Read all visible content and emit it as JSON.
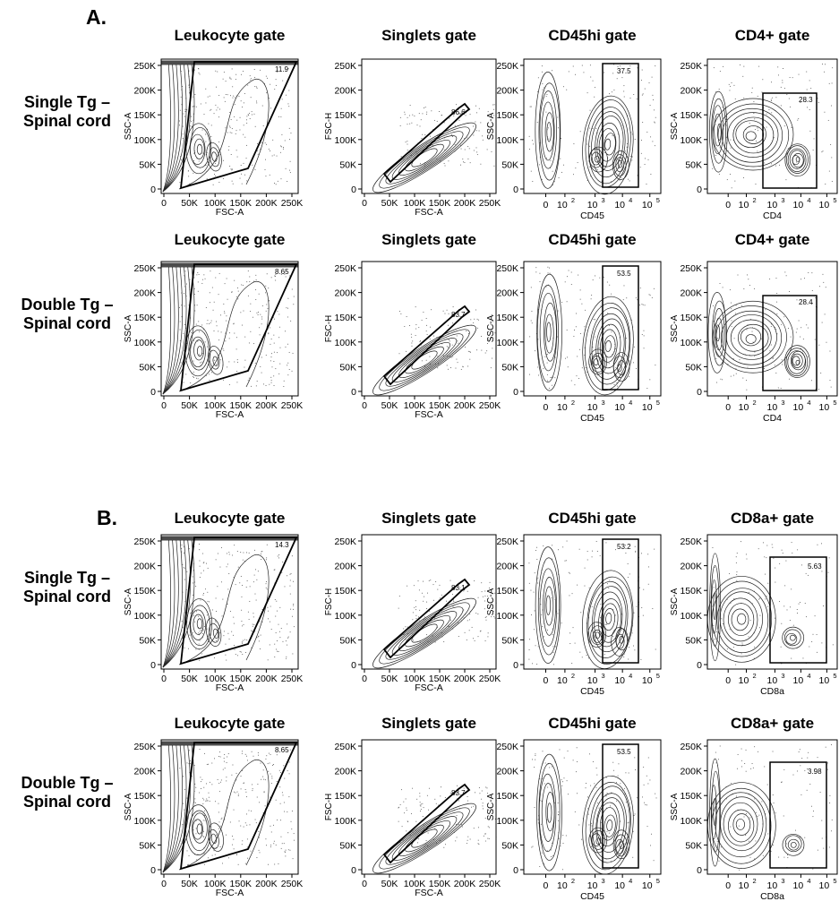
{
  "figure": {
    "sections": [
      {
        "label": "A.",
        "rows": [
          {
            "row_label": [
              "Single Tg –",
              "Spinal cord"
            ],
            "panels": [
              {
                "title": "Leukocyte gate",
                "kind": "fsc_ssc",
                "gate_value": "11.9",
                "xlabel": "FSC-A",
                "ylabel": "SSC-A"
              },
              {
                "title": "Singlets gate",
                "kind": "singlets",
                "gate_value": "86.6",
                "xlabel": "FSC-A",
                "ylabel": "FSC-H"
              },
              {
                "title": "CD45hi gate",
                "kind": "cd45",
                "gate_value": "37.5",
                "xlabel": "CD45",
                "ylabel": "SSC-A"
              },
              {
                "title": "CD4+ gate",
                "kind": "cd4",
                "gate_value": "28.3",
                "xlabel": "CD4",
                "ylabel": "SSC-A"
              }
            ]
          },
          {
            "row_label": [
              "Double Tg –",
              "Spinal cord"
            ],
            "panels": [
              {
                "title": "Leukocyte gate",
                "kind": "fsc_ssc",
                "gate_value": "8.65",
                "xlabel": "FSC-A",
                "ylabel": "SSC-A"
              },
              {
                "title": "Singlets gate",
                "kind": "singlets",
                "gate_value": "83.7",
                "xlabel": "FSC-A",
                "ylabel": "FSC-H"
              },
              {
                "title": "CD45hi gate",
                "kind": "cd45",
                "gate_value": "53.5",
                "xlabel": "CD45",
                "ylabel": "SSC-A"
              },
              {
                "title": "CD4+ gate",
                "kind": "cd4",
                "gate_value": "28.4",
                "xlabel": "CD4",
                "ylabel": "SSC-A"
              }
            ]
          }
        ]
      },
      {
        "label": "B.",
        "rows": [
          {
            "row_label": [
              "Single Tg –",
              "Spinal cord"
            ],
            "panels": [
              {
                "title": "Leukocyte gate",
                "kind": "fsc_ssc",
                "gate_value": "14.3",
                "xlabel": "FSC-A",
                "ylabel": "SSC-A"
              },
              {
                "title": "Singlets gate",
                "kind": "singlets",
                "gate_value": "83.1",
                "xlabel": "FSC-A",
                "ylabel": "FSC-H"
              },
              {
                "title": "CD45hi gate",
                "kind": "cd45",
                "gate_value": "53.2",
                "xlabel": "CD45",
                "ylabel": "SSC-A"
              },
              {
                "title": "CD8a+ gate",
                "kind": "cd8",
                "gate_value": "5.63",
                "xlabel": "CD8a",
                "ylabel": "SSC-A"
              }
            ]
          },
          {
            "row_label": [
              "Double Tg –",
              "Spinal cord"
            ],
            "panels": [
              {
                "title": "Leukocyte gate",
                "kind": "fsc_ssc",
                "gate_value": "8.65",
                "xlabel": "FSC-A",
                "ylabel": "SSC-A"
              },
              {
                "title": "Singlets gate",
                "kind": "singlets",
                "gate_value": "83.7",
                "xlabel": "FSC-A",
                "ylabel": "FSC-H"
              },
              {
                "title": "CD45hi gate",
                "kind": "cd45",
                "gate_value": "53.5",
                "xlabel": "CD45",
                "ylabel": "SSC-A"
              },
              {
                "title": "CD8a+ gate",
                "kind": "cd8",
                "gate_value": "3.98",
                "xlabel": "CD8a",
                "ylabel": "SSC-A"
              }
            ]
          }
        ]
      }
    ],
    "axes": {
      "linear_y_ticks": [
        "0",
        "50K",
        "100K",
        "150K",
        "200K",
        "250K"
      ],
      "leukocyte_x_ticks": [
        "0",
        "50K",
        "100K",
        "150K",
        "200K",
        "250K"
      ],
      "singlets_x_ticks": [
        "0",
        "50K",
        "100K",
        "150K",
        "200K",
        "250K"
      ],
      "log_x_ticks": [
        "0",
        "10",
        "10",
        "10",
        "10"
      ],
      "log_x_exponents": [
        "",
        "2",
        "3",
        "4",
        "5"
      ]
    }
  }
}
